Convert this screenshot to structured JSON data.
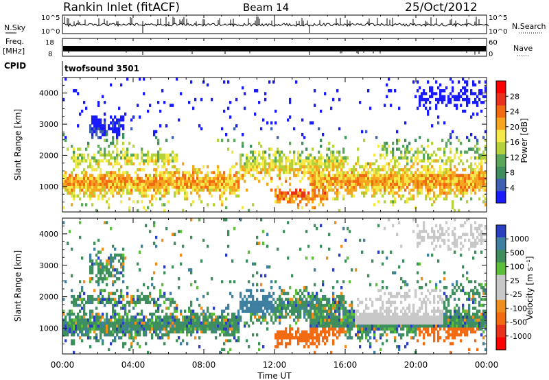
{
  "header": {
    "station": "Rankin Inlet (fitACF)",
    "beam": "Beam 14",
    "date": "25/Oct/2012"
  },
  "aux_panels": {
    "nsky": {
      "label": "N.Sky",
      "ticks_left": [
        "10^5",
        "10^0"
      ],
      "ticks_right": [
        "10^5",
        "10^0"
      ],
      "right_label": "N.Search"
    },
    "freq": {
      "label": "Freq.",
      "unit": "[MHz]",
      "ticks_left": [
        "18",
        "8"
      ],
      "ticks_right": [
        "60",
        "0"
      ],
      "right_label": "Nave"
    },
    "cpid": {
      "label": "CPID",
      "value": "twofsound 3501"
    }
  },
  "colors": {
    "power": [
      "#1a1aff",
      "#3f5fb0",
      "#3e8e5e",
      "#5aa75a",
      "#b5d23a",
      "#f5e94a",
      "#f5a51e",
      "#f26a12",
      "#e8301a",
      "#ff0000"
    ],
    "velocity": [
      "#2a3fbf",
      "#3f7fa0",
      "#3e8e5e",
      "#5cbf3a",
      "#c8c8c8",
      "#c8c8c8",
      "#ee8e1e",
      "#f26a12",
      "#e8301a",
      "#ff0000"
    ]
  },
  "chart_data": [
    {
      "type": "heatmap",
      "panel": "power",
      "xlabel": "Time UT",
      "ylabel": "Slant Range [km]",
      "x_ticks": [
        "00:00",
        "04:00",
        "08:00",
        "12:00",
        "16:00",
        "20:00",
        "00:00"
      ],
      "x_range_hours": [
        0,
        24
      ],
      "y_ticks": [
        1000,
        2000,
        3000,
        4000
      ],
      "y_range_km": [
        180,
        4500
      ],
      "colorbar": {
        "label": "Power [dB]",
        "ticks": [
          "4",
          "8",
          "12",
          "16",
          "20",
          "24",
          "28"
        ],
        "range": [
          0,
          32
        ]
      }
    },
    {
      "type": "heatmap",
      "panel": "velocity",
      "xlabel": "Time UT",
      "ylabel": "Slant Range [km]",
      "x_ticks": [
        "00:00",
        "04:00",
        "08:00",
        "12:00",
        "16:00",
        "20:00",
        "00:00"
      ],
      "x_range_hours": [
        0,
        24
      ],
      "y_ticks": [
        1000,
        2000,
        3000,
        4000
      ],
      "y_range_km": [
        180,
        4500
      ],
      "colorbar": {
        "label": "Velocity [m s⁻¹]",
        "ticks": [
          "1000",
          "500",
          "100",
          "25",
          "-25",
          "-100",
          "-500",
          "-1000"
        ]
      }
    }
  ]
}
